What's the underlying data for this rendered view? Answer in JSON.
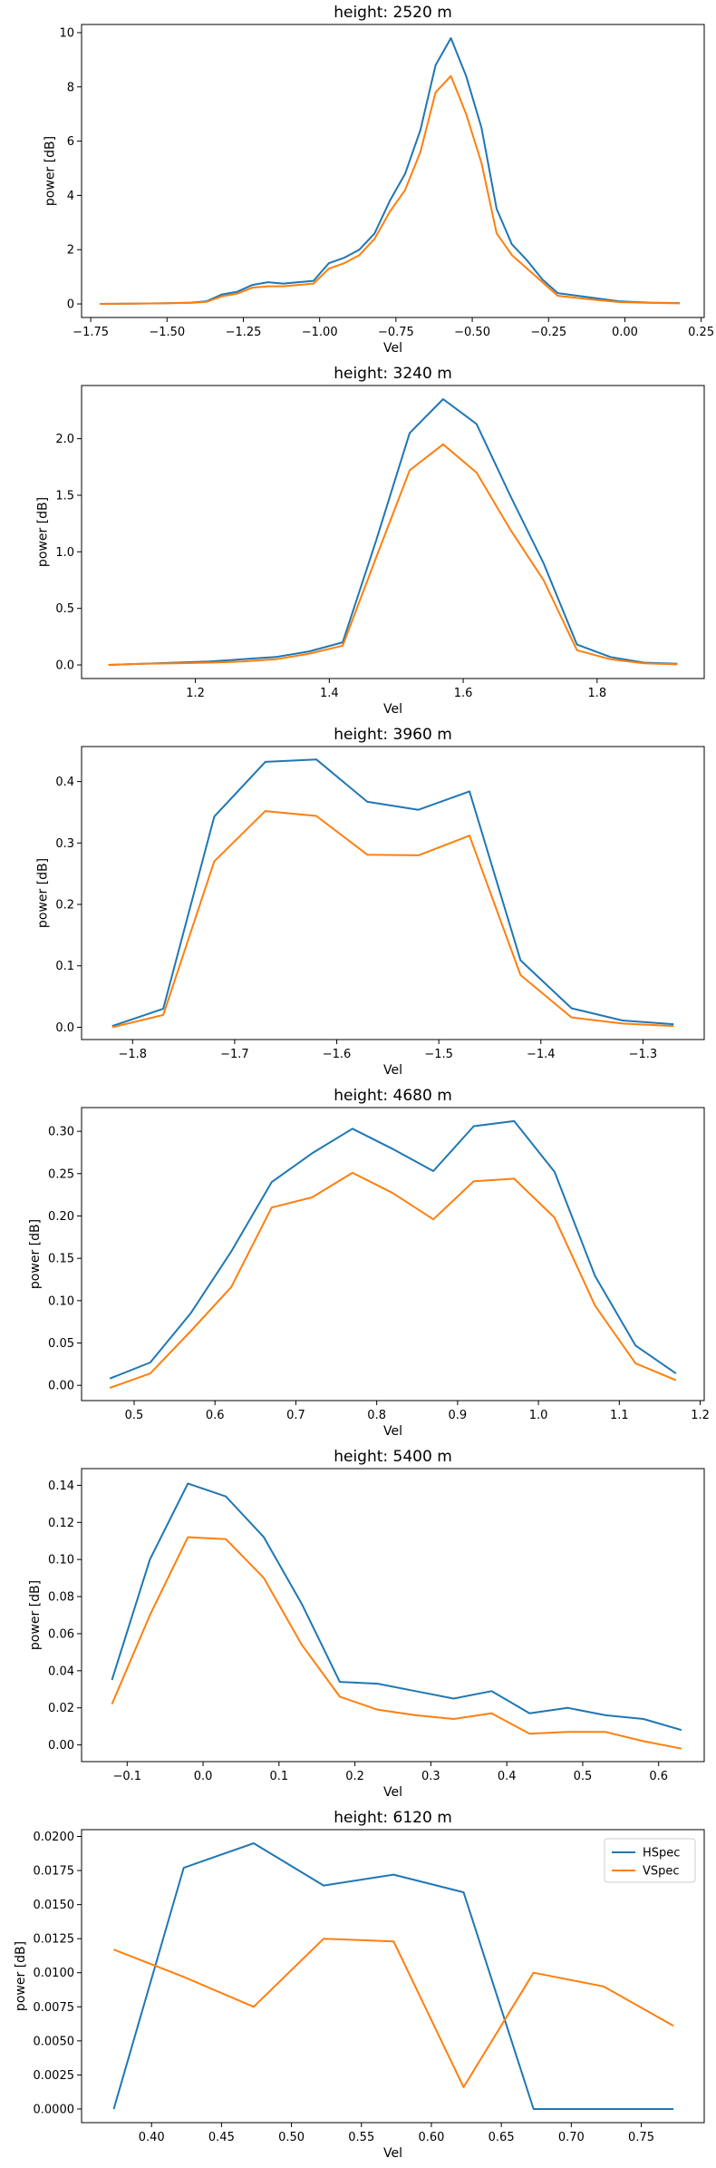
{
  "colors": {
    "hspec": "#1f77b4",
    "vspec": "#ff7f0e",
    "axis": "#000000",
    "background": "#ffffff"
  },
  "legend_entries": [
    "HSpec",
    "VSpec"
  ],
  "chart_data": [
    {
      "type": "line",
      "title": "height: 2520 m",
      "xlabel": "Vel",
      "ylabel": "power [dB]",
      "xlim": [
        -1.78,
        0.26
      ],
      "ylim": [
        -0.5,
        10.3
      ],
      "xticks": [
        -1.75,
        -1.5,
        -1.25,
        -1.0,
        -0.75,
        -0.5,
        -0.25,
        0.0,
        0.25
      ],
      "xtick_labels": [
        "−1.75",
        "−1.50",
        "−1.25",
        "−1.00",
        "−0.75",
        "−0.50",
        "−0.25",
        "0.00",
        "0.25"
      ],
      "yticks": [
        0,
        2,
        4,
        6,
        8,
        10
      ],
      "ytick_labels": [
        "0",
        "2",
        "4",
        "6",
        "8",
        "10"
      ],
      "legend": false,
      "x": [
        -1.72,
        -1.62,
        -1.52,
        -1.42,
        -1.37,
        -1.32,
        -1.27,
        -1.22,
        -1.17,
        -1.12,
        -1.07,
        -1.02,
        -0.97,
        -0.92,
        -0.87,
        -0.82,
        -0.77,
        -0.72,
        -0.67,
        -0.62,
        -0.57,
        -0.52,
        -0.47,
        -0.42,
        -0.37,
        -0.32,
        -0.27,
        -0.22,
        -0.12,
        -0.02,
        0.08,
        0.18
      ],
      "series": [
        {
          "name": "HSpec",
          "values": [
            0.0,
            0.01,
            0.02,
            0.05,
            0.1,
            0.35,
            0.45,
            0.7,
            0.8,
            0.75,
            0.8,
            0.85,
            1.5,
            1.7,
            2.0,
            2.6,
            3.8,
            4.8,
            6.4,
            8.8,
            9.8,
            8.4,
            6.5,
            3.5,
            2.2,
            1.6,
            0.9,
            0.4,
            0.25,
            0.1,
            0.05,
            0.03
          ]
        },
        {
          "name": "VSpec",
          "values": [
            0.0,
            0.01,
            0.02,
            0.04,
            0.08,
            0.28,
            0.38,
            0.6,
            0.65,
            0.65,
            0.7,
            0.75,
            1.3,
            1.5,
            1.8,
            2.4,
            3.4,
            4.2,
            5.6,
            7.8,
            8.4,
            7.0,
            5.2,
            2.6,
            1.8,
            1.3,
            0.8,
            0.3,
            0.18,
            0.07,
            0.04,
            0.02
          ]
        }
      ]
    },
    {
      "type": "line",
      "title": "height: 3240 m",
      "xlabel": "Vel",
      "ylabel": "power [dB]",
      "xlim": [
        1.03,
        1.96
      ],
      "ylim": [
        -0.12,
        2.47
      ],
      "xticks": [
        1.2,
        1.4,
        1.6,
        1.8
      ],
      "xtick_labels": [
        "1.2",
        "1.4",
        "1.6",
        "1.8"
      ],
      "yticks": [
        0.0,
        0.5,
        1.0,
        1.5,
        2.0
      ],
      "ytick_labels": [
        "0.0",
        "0.5",
        "1.0",
        "1.5",
        "2.0"
      ],
      "legend": false,
      "x": [
        1.07,
        1.12,
        1.17,
        1.22,
        1.27,
        1.32,
        1.37,
        1.42,
        1.47,
        1.52,
        1.57,
        1.62,
        1.67,
        1.72,
        1.77,
        1.82,
        1.87,
        1.92
      ],
      "series": [
        {
          "name": "HSpec",
          "values": [
            0.0,
            0.01,
            0.02,
            0.03,
            0.05,
            0.07,
            0.12,
            0.2,
            1.1,
            2.05,
            2.35,
            2.13,
            1.5,
            0.9,
            0.18,
            0.07,
            0.02,
            0.01
          ]
        },
        {
          "name": "VSpec",
          "values": [
            0.0,
            0.01,
            0.015,
            0.02,
            0.03,
            0.05,
            0.1,
            0.17,
            0.95,
            1.72,
            1.95,
            1.7,
            1.2,
            0.75,
            0.13,
            0.05,
            0.015,
            0.005
          ]
        }
      ]
    },
    {
      "type": "line",
      "title": "height: 3960 m",
      "xlabel": "Vel",
      "ylabel": "power [dB]",
      "xlim": [
        -1.85,
        -1.24
      ],
      "ylim": [
        -0.02,
        0.457
      ],
      "xticks": [
        -1.8,
        -1.7,
        -1.6,
        -1.5,
        -1.4,
        -1.3
      ],
      "xtick_labels": [
        "−1.8",
        "−1.7",
        "−1.6",
        "−1.5",
        "−1.4",
        "−1.3"
      ],
      "yticks": [
        0.0,
        0.1,
        0.2,
        0.3,
        0.4
      ],
      "ytick_labels": [
        "0.0",
        "0.1",
        "0.2",
        "0.3",
        "0.4"
      ],
      "legend": false,
      "x": [
        -1.82,
        -1.77,
        -1.72,
        -1.67,
        -1.62,
        -1.57,
        -1.52,
        -1.47,
        -1.42,
        -1.37,
        -1.32,
        -1.27
      ],
      "series": [
        {
          "name": "HSpec",
          "values": [
            0.002,
            0.03,
            0.343,
            0.432,
            0.436,
            0.367,
            0.354,
            0.384,
            0.109,
            0.031,
            0.011,
            0.005
          ]
        },
        {
          "name": "VSpec",
          "values": [
            0.0,
            0.02,
            0.27,
            0.352,
            0.344,
            0.281,
            0.28,
            0.312,
            0.085,
            0.016,
            0.006,
            0.002
          ]
        }
      ]
    },
    {
      "type": "line",
      "title": "height: 4680 m",
      "xlabel": "Vel",
      "ylabel": "power [dB]",
      "xlim": [
        0.435,
        1.205
      ],
      "ylim": [
        -0.018,
        0.328
      ],
      "xticks": [
        0.5,
        0.6,
        0.7,
        0.8,
        0.9,
        1.0,
        1.1,
        1.2
      ],
      "xtick_labels": [
        "0.5",
        "0.6",
        "0.7",
        "0.8",
        "0.9",
        "1.0",
        "1.1",
        "1.2"
      ],
      "yticks": [
        0.0,
        0.05,
        0.1,
        0.15,
        0.2,
        0.25,
        0.3
      ],
      "ytick_labels": [
        "0.00",
        "0.05",
        "0.10",
        "0.15",
        "0.20",
        "0.25",
        "0.30"
      ],
      "legend": false,
      "x": [
        0.47,
        0.52,
        0.57,
        0.62,
        0.67,
        0.72,
        0.77,
        0.82,
        0.87,
        0.92,
        0.97,
        1.02,
        1.07,
        1.12,
        1.17
      ],
      "series": [
        {
          "name": "HSpec",
          "values": [
            0.008,
            0.027,
            0.085,
            0.158,
            0.24,
            0.274,
            0.303,
            0.279,
            0.253,
            0.306,
            0.312,
            0.252,
            0.129,
            0.047,
            0.014
          ]
        },
        {
          "name": "VSpec",
          "values": [
            -0.003,
            0.014,
            0.064,
            0.116,
            0.21,
            0.222,
            0.251,
            0.227,
            0.196,
            0.241,
            0.244,
            0.198,
            0.094,
            0.026,
            0.006
          ]
        }
      ]
    },
    {
      "type": "line",
      "title": "height: 5400 m",
      "xlabel": "Vel",
      "ylabel": "power [dB]",
      "xlim": [
        -0.16,
        0.66
      ],
      "ylim": [
        -0.009,
        0.149
      ],
      "xticks": [
        -0.1,
        0.0,
        0.1,
        0.2,
        0.3,
        0.4,
        0.5,
        0.6
      ],
      "xtick_labels": [
        "−0.1",
        "0.0",
        "0.1",
        "0.2",
        "0.3",
        "0.4",
        "0.5",
        "0.6"
      ],
      "yticks": [
        0.0,
        0.02,
        0.04,
        0.06,
        0.08,
        0.1,
        0.12,
        0.14
      ],
      "ytick_labels": [
        "0.00",
        "0.02",
        "0.04",
        "0.06",
        "0.08",
        "0.10",
        "0.12",
        "0.14"
      ],
      "legend": false,
      "x": [
        -0.12,
        -0.07,
        -0.02,
        0.03,
        0.08,
        0.13,
        0.18,
        0.23,
        0.28,
        0.33,
        0.38,
        0.43,
        0.48,
        0.53,
        0.58,
        0.63
      ],
      "series": [
        {
          "name": "HSpec",
          "values": [
            0.035,
            0.1,
            0.141,
            0.134,
            0.112,
            0.076,
            0.034,
            0.033,
            0.029,
            0.025,
            0.029,
            0.017,
            0.02,
            0.016,
            0.014,
            0.008
          ]
        },
        {
          "name": "VSpec",
          "values": [
            0.022,
            0.07,
            0.112,
            0.111,
            0.09,
            0.054,
            0.026,
            0.019,
            0.016,
            0.014,
            0.017,
            0.006,
            0.007,
            0.007,
            0.002,
            -0.002
          ]
        }
      ]
    },
    {
      "type": "line",
      "title": "height: 6120 m",
      "xlabel": "Vel",
      "ylabel": "power [dB]",
      "xlim": [
        0.35,
        0.795
      ],
      "ylim": [
        -0.001,
        0.0205
      ],
      "xticks": [
        0.4,
        0.45,
        0.5,
        0.55,
        0.6,
        0.65,
        0.7,
        0.75
      ],
      "xtick_labels": [
        "0.40",
        "0.45",
        "0.50",
        "0.55",
        "0.60",
        "0.65",
        "0.70",
        "0.75"
      ],
      "yticks": [
        0.0,
        0.0025,
        0.005,
        0.0075,
        0.01,
        0.0125,
        0.015,
        0.0175,
        0.02
      ],
      "ytick_labels": [
        "0.0000",
        "0.0025",
        "0.0050",
        "0.0075",
        "0.0100",
        "0.0125",
        "0.0150",
        "0.0175",
        "0.0200"
      ],
      "legend": true,
      "legend_placement": "top-right",
      "x": [
        0.373,
        0.423,
        0.473,
        0.523,
        0.573,
        0.623,
        0.673,
        0.723,
        0.773
      ],
      "series": [
        {
          "name": "HSpec",
          "values": [
            0.0,
            0.0177,
            0.0195,
            0.0164,
            0.0172,
            0.0159,
            0.0,
            0.0,
            0.0
          ]
        },
        {
          "name": "VSpec",
          "values": [
            0.0117,
            0.0097,
            0.0075,
            0.0125,
            0.0123,
            0.0016,
            0.01,
            0.009,
            0.0061
          ]
        }
      ]
    }
  ]
}
